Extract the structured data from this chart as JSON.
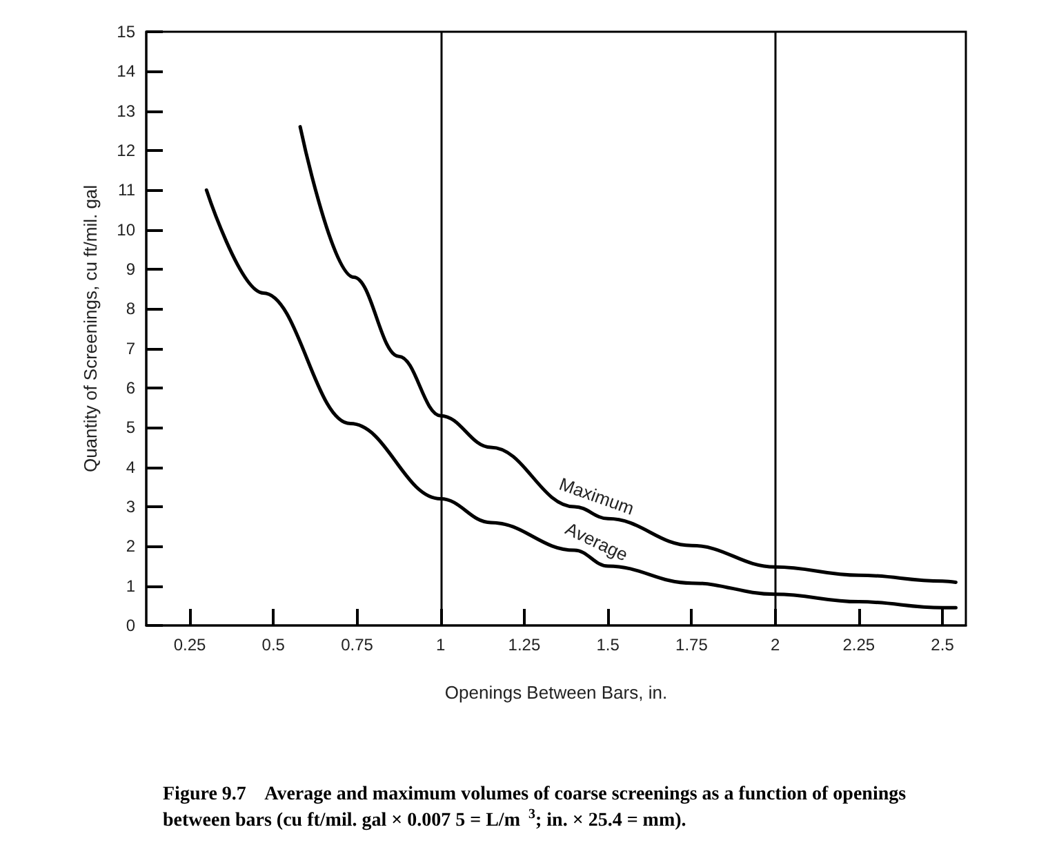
{
  "chart_data": {
    "type": "line",
    "xlabel": "Openings Between Bars, in.",
    "ylabel": "Quantity of Screenings, cu ft/mil. gal",
    "series": [
      {
        "x": [
          0.3,
          0.47,
          0.73,
          1.0,
          1.15,
          1.4,
          1.5,
          1.75,
          2.0,
          2.25,
          2.5,
          2.54
        ],
        "values": [
          11.0,
          8.4,
          5.1,
          3.2,
          2.6,
          1.9,
          1.5,
          1.07,
          0.79,
          0.6,
          0.45,
          0.45
        ],
        "color": "#000000",
        "name": "Average"
      },
      {
        "x": [
          0.58,
          0.74,
          0.875,
          1.0,
          1.15,
          1.4,
          1.5,
          1.75,
          2.0,
          2.25,
          2.5,
          2.54
        ],
        "values": [
          12.6,
          8.8,
          6.8,
          5.3,
          4.5,
          3.0,
          2.7,
          2.02,
          1.48,
          1.27,
          1.12,
          1.09
        ],
        "color": "#000000",
        "name": "Maximum"
      }
    ],
    "xlim": [
      0.12,
      2.57
    ],
    "xticks": [
      0.25,
      0.5,
      0.75,
      1,
      1.25,
      1.5,
      1.75,
      2,
      2.25,
      2.5
    ],
    "ylim": [
      0,
      15
    ],
    "yticks": [
      0,
      1,
      2,
      3,
      4,
      5,
      6,
      7,
      8,
      9,
      10,
      11,
      12,
      13,
      14,
      15
    ],
    "ref_lines": [
      {
        "axis": "x",
        "value": 1,
        "color": "#000000"
      },
      {
        "axis": "x",
        "value": 2,
        "color": "#000000"
      }
    ],
    "annotations": [
      "Figure 9.7    Average and maximum volumes of coarse screenings as a function of openings between bars (cu ft/mil. gal × 0.007 5 = L/m$^{3}$; in. × 25.4 = mm)."
    ],
    "grid": false,
    "legend": false,
    "marker": "none",
    "line_style": "solid"
  }
}
